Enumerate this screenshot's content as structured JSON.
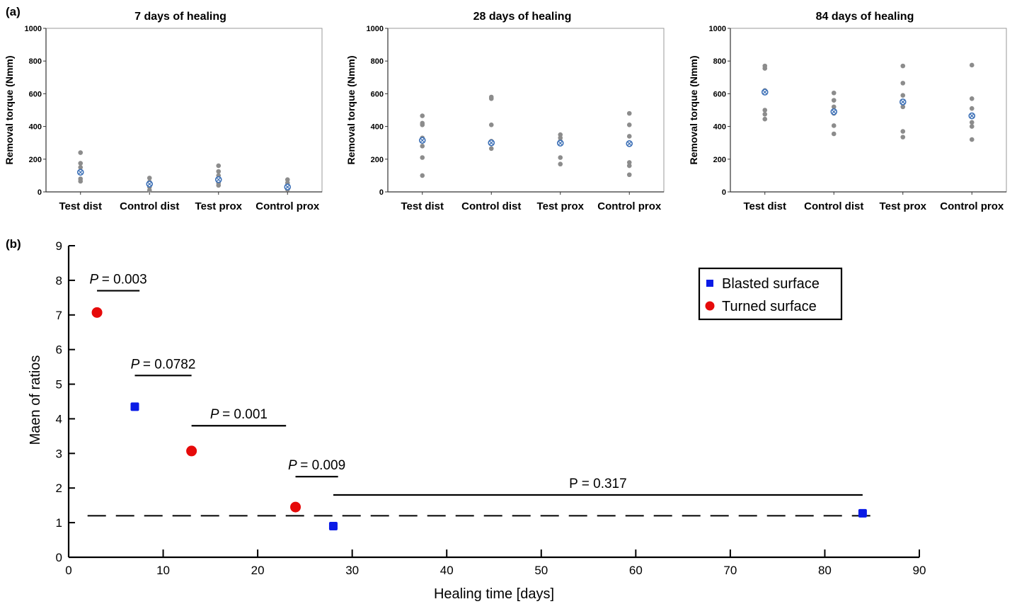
{
  "panel_labels": [
    "(a)",
    "(b)"
  ],
  "chart_data": [
    {
      "type": "scatter",
      "title": "7 days of healing",
      "ylabel": "Removal torque (Nmm)",
      "xlabel": "",
      "ylim": [
        0,
        1000
      ],
      "yticks": [
        0,
        200,
        400,
        600,
        800,
        1000
      ],
      "categories": [
        "Test dist",
        "Control dist",
        "Test prox",
        "Control prox"
      ],
      "points": [
        [
          240,
          175,
          150,
          120,
          80,
          65
        ],
        [
          85,
          60,
          45,
          30,
          10
        ],
        [
          160,
          125,
          100,
          75,
          55,
          40
        ],
        [
          75,
          55,
          40,
          25,
          15
        ]
      ],
      "means": [
        120,
        48,
        75,
        30
      ],
      "point_color": "#8c8c8c",
      "mean_color": "#3b6fb6"
    },
    {
      "type": "scatter",
      "title": "28 days of healing",
      "ylabel": "Removal torque (Nmm)",
      "xlabel": "",
      "ylim": [
        0,
        1000
      ],
      "yticks": [
        0,
        200,
        400,
        600,
        800,
        1000
      ],
      "categories": [
        "Test dist",
        "Control dist",
        "Test prox",
        "Control prox"
      ],
      "points": [
        [
          465,
          420,
          410,
          330,
          280,
          210,
          100
        ],
        [
          580,
          570,
          410,
          310,
          300,
          265
        ],
        [
          350,
          330,
          310,
          300,
          210,
          170
        ],
        [
          480,
          410,
          340,
          300,
          180,
          160,
          105
        ]
      ],
      "means": [
        315,
        300,
        298,
        295
      ],
      "point_color": "#8c8c8c",
      "mean_color": "#3b6fb6"
    },
    {
      "type": "scatter",
      "title": "84 days of healing",
      "ylabel": "Removal torque (Nmm)",
      "xlabel": "",
      "ylim": [
        0,
        1000
      ],
      "yticks": [
        0,
        200,
        400,
        600,
        800,
        1000
      ],
      "categories": [
        "Test dist",
        "Control dist",
        "Test prox",
        "Control prox"
      ],
      "points": [
        [
          770,
          755,
          620,
          500,
          475,
          445
        ],
        [
          605,
          560,
          520,
          480,
          405,
          355
        ],
        [
          770,
          665,
          590,
          520,
          370,
          335
        ],
        [
          775,
          570,
          510,
          460,
          425,
          400,
          320
        ]
      ],
      "means": [
        610,
        490,
        550,
        465
      ],
      "point_color": "#8c8c8c",
      "mean_color": "#3b6fb6"
    },
    {
      "type": "scatter",
      "title": "",
      "xlabel": "Healing time [days]",
      "ylabel": "Maen of ratios",
      "xlim": [
        0,
        90
      ],
      "ylim": [
        0,
        9
      ],
      "xticks": [
        0,
        10,
        20,
        30,
        40,
        50,
        60,
        70,
        80,
        90
      ],
      "yticks": [
        0,
        1,
        2,
        3,
        4,
        5,
        6,
        7,
        8,
        9
      ],
      "series": [
        {
          "name": "Blasted surface",
          "marker": "square",
          "color": "#0a1be6",
          "x": [
            7,
            28,
            84
          ],
          "y": [
            4.35,
            0.9,
            1.27
          ]
        },
        {
          "name": "Turned surface",
          "marker": "circle",
          "color": "#e60a0a",
          "x": [
            3,
            13,
            24
          ],
          "y": [
            7.07,
            3.07,
            1.45
          ]
        }
      ],
      "reference_line": {
        "y": 1.2,
        "style": "dashed",
        "x": [
          2,
          85
        ]
      },
      "annotations": [
        {
          "text": "= 0.003",
          "italic": "P",
          "x1": 3,
          "x2": 7.5,
          "y": 7.7
        },
        {
          "text": "= 0.0782",
          "italic": "P",
          "x1": 7,
          "x2": 13,
          "y": 5.25
        },
        {
          "text": "= 0.001",
          "italic": "P",
          "x1": 13,
          "x2": 23,
          "y": 3.8
        },
        {
          "text": "= 0.009",
          "italic": "P",
          "x1": 24,
          "x2": 28.5,
          "y": 2.33
        },
        {
          "text": "P = 0.317",
          "italic": "",
          "x1": 28,
          "x2": 84,
          "y": 1.8
        }
      ],
      "legend_position": "top-right"
    }
  ]
}
